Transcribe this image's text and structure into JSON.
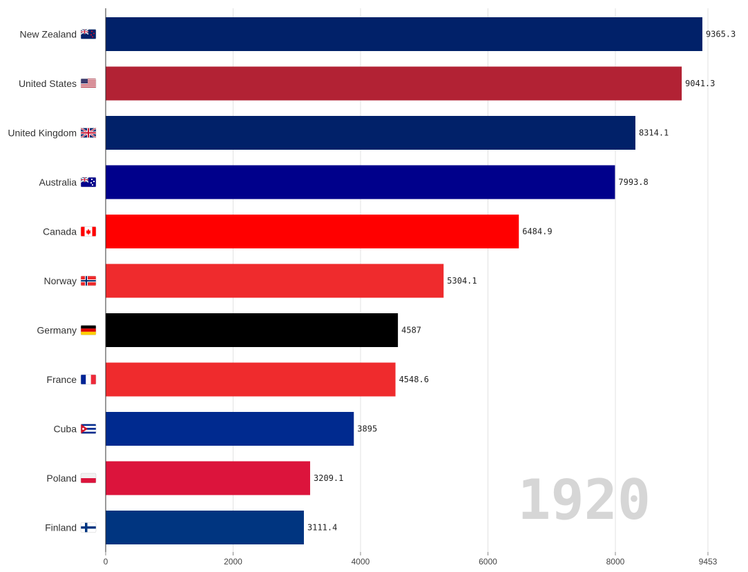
{
  "chart_data": {
    "type": "bar",
    "orientation": "horizontal",
    "year": "1920",
    "categories": [
      "New Zealand",
      "United States",
      "United Kingdom",
      "Australia",
      "Canada",
      "Norway",
      "Germany",
      "France",
      "Cuba",
      "Poland",
      "Finland"
    ],
    "flag_icons": [
      "nz-flag-icon",
      "us-flag-icon",
      "uk-flag-icon",
      "australia-flag-icon",
      "canada-flag-icon",
      "norway-flag-icon",
      "germany-flag-icon",
      "france-flag-icon",
      "cuba-flag-icon",
      "poland-flag-icon",
      "finland-flag-icon"
    ],
    "values": [
      9365.3,
      9041.3,
      8314.1,
      7993.8,
      6484.9,
      5304.1,
      4587,
      4548.6,
      3895,
      3209.1,
      3111.4
    ],
    "value_labels": [
      "9365.3",
      "9041.3",
      "8314.1",
      "7993.8",
      "6484.9",
      "5304.1",
      "4587",
      "4548.6",
      "3895",
      "3209.1",
      "3111.4"
    ],
    "colors": [
      "#012169",
      "#B22234",
      "#012169",
      "#00008B",
      "#FF0000",
      "#EF2B2D",
      "#000000",
      "#EF2B2D",
      "#002A8F",
      "#DC143C",
      "#003580"
    ],
    "x_ticks": [
      0,
      2000,
      4000,
      6000,
      8000,
      9453
    ],
    "x_tick_labels": [
      "0",
      "2000",
      "4000",
      "6000",
      "8000",
      "9453"
    ],
    "xlim": [
      0,
      9453
    ],
    "grid": true
  }
}
